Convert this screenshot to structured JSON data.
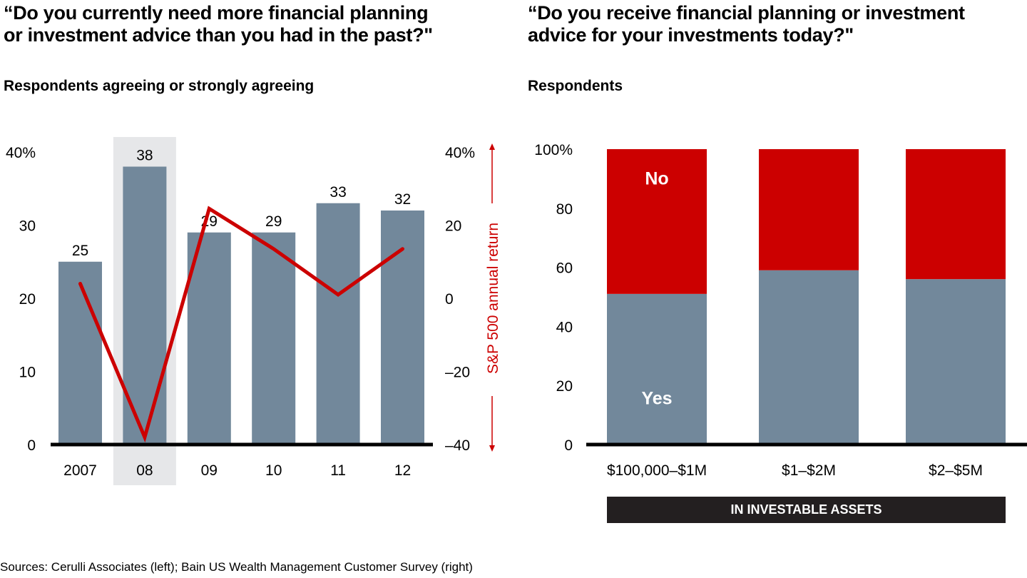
{
  "left": {
    "title_line1": "“Do you currently need more financial planning",
    "title_line2": "or investment advice than you had in the past?\"",
    "subtitle": "Respondents agreeing or strongly agreeing"
  },
  "right": {
    "title_line1": "“Do you receive financial planning or investment",
    "title_line2": "advice for your investments today?\"",
    "subtitle": "Respondents",
    "banner": "IN INVESTABLE ASSETS"
  },
  "source": "Sources: Cerulli Associates (left); Bain US Wealth Management Customer Survey (right)",
  "colors": {
    "bar": "#72889b",
    "highlight": "#e6e7e9",
    "line": "#cc0000",
    "axis": "#000000"
  },
  "chart_data": [
    {
      "type": "bar",
      "title": "“Do you currently need more financial planning or investment advice than you had in the past?\"",
      "subtitle": "Respondents agreeing or strongly agreeing",
      "categories": [
        "2007",
        "08",
        "09",
        "10",
        "11",
        "12"
      ],
      "highlight_category": "08",
      "values": [
        25,
        38,
        29,
        29,
        33,
        32
      ],
      "data_labels": [
        "25",
        "38",
        "29",
        "29",
        "33",
        "32"
      ],
      "ylim": [
        0,
        40
      ],
      "yticks": [
        0,
        10,
        20,
        30,
        40
      ],
      "ytick_labels": [
        "0",
        "10",
        "20",
        "30",
        "40%"
      ],
      "secondary": {
        "type": "line",
        "name": "S&P 500 annual return",
        "ylabel": "S&P 500 annual return",
        "values": [
          4,
          -38,
          24.5,
          13.5,
          1,
          13.5
        ],
        "ylim": [
          -40,
          40
        ],
        "yticks": [
          -40,
          -20,
          0,
          20,
          40
        ],
        "ytick_labels": [
          "–40",
          "–20",
          "0",
          "20",
          "40%"
        ]
      },
      "grid": false
    },
    {
      "type": "bar",
      "stacked": true,
      "title": "“Do you receive financial planning or investment advice for your investments today?\"",
      "subtitle": "Respondents",
      "categories": [
        "$100,000–$1M",
        "$1–$2M",
        "$2–$5M"
      ],
      "xlabel": "IN INVESTABLE ASSETS",
      "series": [
        {
          "name": "Yes",
          "values": [
            51,
            59,
            56
          ]
        },
        {
          "name": "No",
          "values": [
            49,
            41,
            44
          ]
        }
      ],
      "ylim": [
        0,
        100
      ],
      "yticks": [
        0,
        20,
        40,
        60,
        80,
        100
      ],
      "ytick_labels": [
        "0",
        "20",
        "40",
        "60",
        "80",
        "100%"
      ],
      "segment_labels": {
        "Yes": "Yes",
        "No": "No"
      },
      "grid": false
    }
  ]
}
